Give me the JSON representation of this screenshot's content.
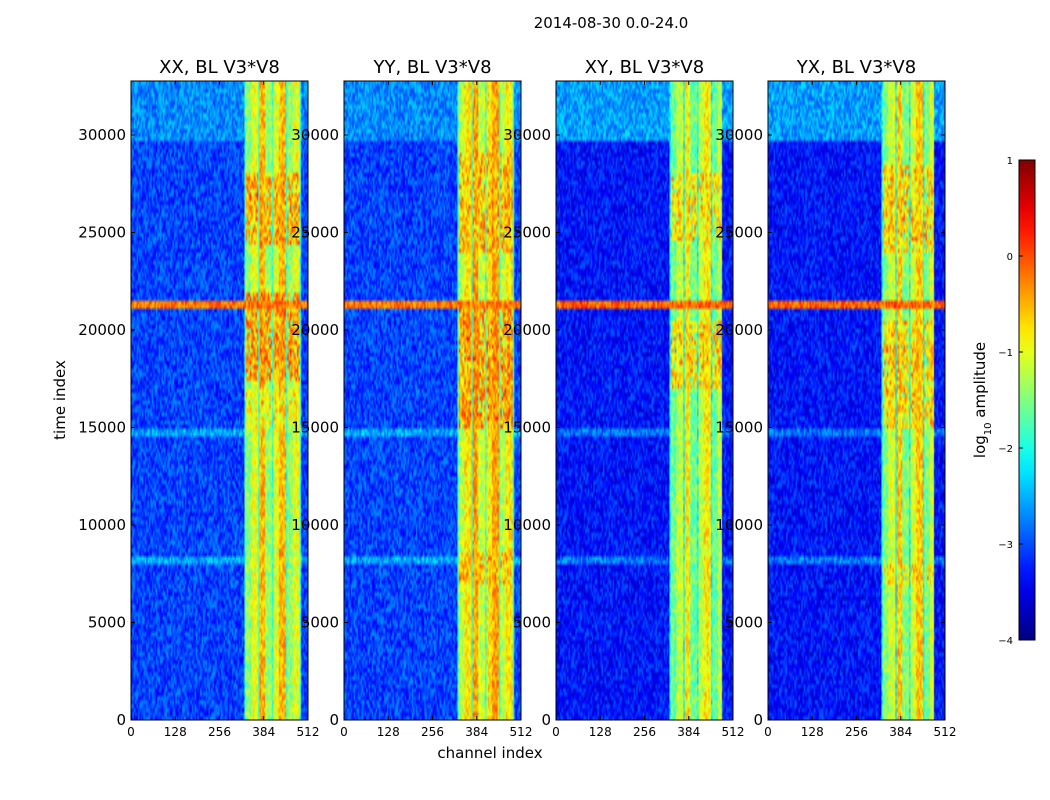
{
  "chart_data": {
    "type": "heatmap",
    "title": "2014-08-30 0.0-24.0",
    "xlabel": "channel index",
    "ylabel": "time index",
    "xlim": [
      0,
      512
    ],
    "ylim": [
      0,
      32768
    ],
    "x_ticks": [
      "0",
      "128",
      "256",
      "384",
      "512"
    ],
    "x_tick_values": [
      0,
      128,
      256,
      384,
      512
    ],
    "y_ticks": [
      "0",
      "5000",
      "10000",
      "15000",
      "20000",
      "25000",
      "30000"
    ],
    "y_tick_values": [
      0,
      5000,
      10000,
      15000,
      20000,
      25000,
      30000
    ],
    "colormap": "jet",
    "colorbar": {
      "label_prefix": "log",
      "label_sub": "10",
      "label_suffix": " amplitude",
      "range": [
        -4,
        1
      ],
      "ticks": [
        "1",
        "0",
        "−1",
        "−2",
        "−3",
        "−4"
      ],
      "tick_values": [
        1,
        0,
        -1,
        -2,
        -3,
        -4
      ]
    },
    "panels": [
      {
        "title": "XX, BL V3*V8",
        "background_level": -3.05,
        "upper_band_level": -2.7,
        "upper_band_start": 29600,
        "high_channel_band": [
          330,
          490
        ],
        "band_levels": [
          -1.4,
          -1.0,
          -0.5
        ],
        "rfi_row_time": 21300,
        "rfi_row_level": -0.2,
        "hot_regions": [
          [
            17500,
            22000,
            -0.3
          ],
          [
            24300,
            28000,
            -0.4
          ],
          [
            15000,
            17000,
            -0.9
          ]
        ]
      },
      {
        "title": "YY, BL V3*V8",
        "background_level": -3.05,
        "upper_band_level": -2.7,
        "upper_band_start": 29600,
        "high_channel_band": [
          330,
          490
        ],
        "band_levels": [
          -1.2,
          -0.8,
          -0.4
        ],
        "rfi_row_time": 21300,
        "rfi_row_level": -0.2,
        "hot_regions": [
          [
            15000,
            21000,
            -0.3
          ],
          [
            24000,
            29000,
            -0.5
          ],
          [
            7000,
            8500,
            -0.5
          ]
        ]
      },
      {
        "title": "XY, BL V3*V8",
        "background_level": -3.3,
        "upper_band_level": -2.6,
        "upper_band_start": 29600,
        "high_channel_band": [
          330,
          480
        ],
        "band_levels": [
          -1.6,
          -1.2,
          -0.8
        ],
        "rfi_row_time": 21300,
        "rfi_row_level": -0.1,
        "hot_regions": [
          [
            17000,
            20500,
            -0.6
          ],
          [
            24500,
            28000,
            -0.7
          ]
        ]
      },
      {
        "title": "YX, BL V3*V8",
        "background_level": -3.3,
        "upper_band_level": -2.6,
        "upper_band_start": 29600,
        "high_channel_band": [
          330,
          480
        ],
        "band_levels": [
          -1.5,
          -1.1,
          -0.6
        ],
        "rfi_row_time": 21300,
        "rfi_row_level": -0.1,
        "hot_regions": [
          [
            15000,
            20500,
            -0.6
          ],
          [
            24000,
            28500,
            -0.6
          ],
          [
            7000,
            8000,
            -0.7
          ]
        ]
      }
    ]
  }
}
